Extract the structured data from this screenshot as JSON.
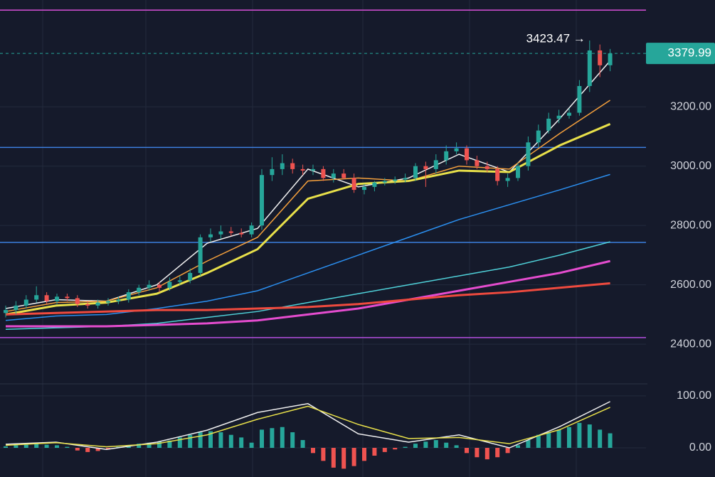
{
  "chart_data": [
    {
      "type": "candlestick",
      "ylim": [
        2290,
        3560
      ],
      "yticks": [
        {
          "value": 2400,
          "label": "2400.00"
        },
        {
          "value": 2600,
          "label": "2600.00"
        },
        {
          "value": 2800,
          "label": "2800.00"
        },
        {
          "value": 3000,
          "label": "3000.00"
        },
        {
          "value": 3200,
          "label": "3200.00"
        }
      ],
      "up_color": "#26a69a",
      "down_color": "#ef5350",
      "open": [
        2505,
        2515,
        2530,
        2550,
        2565,
        2545,
        2560,
        2555,
        2535,
        2530,
        2540,
        2545,
        2550,
        2575,
        2590,
        2600,
        2590,
        2610,
        2615,
        2640,
        2760,
        2770,
        2780,
        2775,
        2770,
        2800,
        2970,
        2990,
        3010,
        2990,
        2985,
        2990,
        2960,
        2975,
        2960,
        2920,
        2930,
        2945,
        2950,
        2955,
        2960,
        3000,
        2990,
        3020,
        3050,
        3060,
        3020,
        3000,
        2990,
        2950,
        2960,
        3000,
        3080,
        3120,
        3160,
        3170,
        3180,
        3270,
        3390,
        3340
      ],
      "high": [
        2530,
        2545,
        2565,
        2595,
        2575,
        2570,
        2570,
        2565,
        2545,
        2550,
        2555,
        2560,
        2585,
        2600,
        2615,
        2610,
        2625,
        2630,
        2655,
        2770,
        2790,
        2800,
        2795,
        2790,
        2810,
        2990,
        3030,
        3040,
        3025,
        3005,
        3005,
        3000,
        2990,
        2990,
        2975,
        2940,
        2950,
        2960,
        2965,
        2975,
        3010,
        3015,
        3040,
        3070,
        3080,
        3070,
        3035,
        3015,
        3000,
        2975,
        3010,
        3100,
        3140,
        3180,
        3190,
        3195,
        3290,
        3423.47,
        3410,
        3395
      ],
      "low": [
        2490,
        2500,
        2520,
        2540,
        2535,
        2535,
        2545,
        2525,
        2520,
        2520,
        2530,
        2535,
        2540,
        2565,
        2580,
        2575,
        2580,
        2600,
        2605,
        2630,
        2745,
        2755,
        2765,
        2760,
        2760,
        2785,
        2950,
        2970,
        2975,
        2970,
        2970,
        2950,
        2945,
        2955,
        2910,
        2905,
        2915,
        2935,
        2940,
        2945,
        2950,
        2930,
        2975,
        3005,
        3040,
        3005,
        2990,
        2980,
        2935,
        2930,
        2950,
        2985,
        3065,
        3110,
        3145,
        3160,
        3170,
        3250,
        3300,
        3320
      ],
      "close": [
        2515,
        2530,
        2550,
        2565,
        2545,
        2560,
        2555,
        2535,
        2530,
        2540,
        2545,
        2550,
        2575,
        2590,
        2600,
        2590,
        2610,
        2615,
        2640,
        2760,
        2770,
        2780,
        2775,
        2770,
        2800,
        2970,
        2990,
        3010,
        2990,
        2985,
        2990,
        2960,
        2975,
        2960,
        2920,
        2930,
        2945,
        2950,
        2955,
        2960,
        3000,
        2990,
        3020,
        3050,
        3060,
        3020,
        3000,
        2990,
        2950,
        2960,
        3000,
        3080,
        3120,
        3160,
        3170,
        3180,
        3270,
        3390,
        3340,
        3379.99
      ],
      "series": [
        {
          "color": "#f0f0f0",
          "values": [
            2520,
            2550,
            2545,
            2600,
            2740,
            2790,
            2990,
            2930,
            2960,
            3040,
            2980,
            3160,
            3355
          ]
        },
        {
          "color": "#f5a03c",
          "values": [
            2510,
            2540,
            2545,
            2590,
            2680,
            2760,
            2950,
            2960,
            2950,
            3000,
            2990,
            3110,
            3222
          ]
        },
        {
          "color": "#e8e04a",
          "values": [
            2500,
            2530,
            2540,
            2570,
            2640,
            2720,
            2890,
            2940,
            2950,
            2985,
            2980,
            3070,
            3142
          ]
        },
        {
          "color": "#2b8ff0",
          "values": [
            2480,
            2495,
            2500,
            2520,
            2545,
            2580,
            2640,
            2700,
            2760,
            2820,
            2870,
            2920,
            2972
          ]
        },
        {
          "color": "#4fd1d9",
          "values": [
            2450,
            2455,
            2460,
            2470,
            2490,
            2510,
            2540,
            2570,
            2600,
            2630,
            2660,
            2700,
            2745
          ]
        },
        {
          "color": "#e54ccf",
          "values": [
            2460,
            2460,
            2460,
            2465,
            2470,
            2480,
            2500,
            2520,
            2550,
            2580,
            2610,
            2640,
            2680
          ]
        },
        {
          "color": "#ef4a3e",
          "values": [
            2500,
            2505,
            2510,
            2515,
            2515,
            2520,
            2525,
            2535,
            2550,
            2565,
            2575,
            2590,
            2605
          ]
        }
      ],
      "levels": [
        {
          "value": 3526,
          "color": "#d64fd6"
        },
        {
          "value": 3063,
          "color": "#3d7fe0"
        },
        {
          "value": 2743,
          "color": "#3d7fe0"
        },
        {
          "value": 2422,
          "color": "#b44fe0"
        }
      ],
      "last_price": {
        "value": 3379.99,
        "label": "3379.99",
        "color": "#26a69a"
      },
      "high_marker": {
        "value": 3423.47,
        "label": "3423.47 →"
      }
    },
    {
      "type": "oscillator",
      "ylim": [
        -56,
        123
      ],
      "yticks": [
        {
          "value": 0,
          "label": "0.00"
        },
        {
          "value": 100,
          "label": "100.00"
        }
      ],
      "up_color": "#26a69a",
      "down_color": "#ef5350",
      "histogram": [
        3,
        5,
        6,
        8,
        6,
        5,
        2,
        -5,
        -8,
        -6,
        -3,
        2,
        5,
        8,
        10,
        12,
        14,
        20,
        25,
        30,
        32,
        30,
        25,
        20,
        10,
        35,
        38,
        40,
        30,
        15,
        -10,
        -25,
        -38,
        -40,
        -35,
        -25,
        -15,
        -8,
        -3,
        2,
        8,
        12,
        15,
        10,
        5,
        -10,
        -18,
        -22,
        -18,
        -10,
        5,
        15,
        25,
        30,
        35,
        40,
        48,
        45,
        35,
        28
      ],
      "series": [
        {
          "color": "#f0f0f0",
          "values": [
            7,
            11,
            -3,
            11,
            34,
            68,
            85,
            27,
            11,
            25,
            0,
            41,
            89
          ]
        },
        {
          "color": "#e8e04a",
          "values": [
            5,
            10,
            2,
            8,
            25,
            55,
            80,
            45,
            18,
            20,
            8,
            35,
            78
          ]
        }
      ]
    }
  ]
}
